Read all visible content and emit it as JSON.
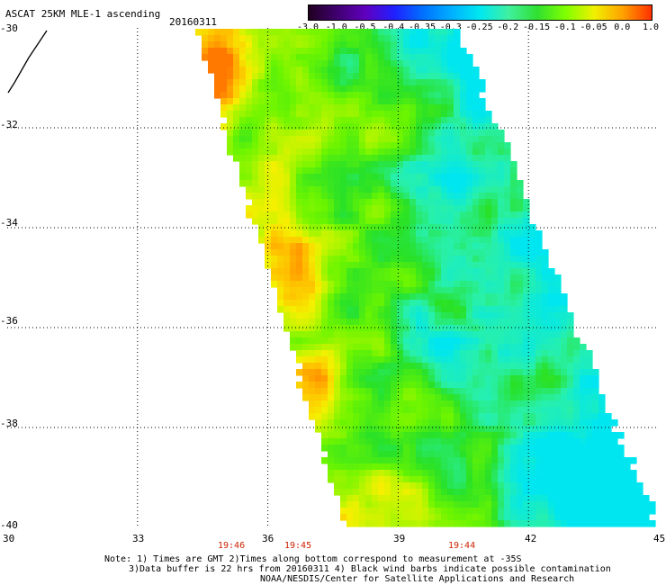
{
  "header": {
    "title": "ASCAT 25KM MLE-1 ascending",
    "date": "20160311"
  },
  "colorbar": {
    "labels": [
      "-3.0",
      "-1.0",
      "-0.5",
      "-0.4",
      "-0.35",
      "-0.3",
      "-0.25",
      "-0.2",
      "-0.15",
      "-0.1",
      "-0.05",
      "0.0",
      "1.0"
    ],
    "colors": [
      "#200020",
      "#400070",
      "#6000c0",
      "#2020ff",
      "#0070ff",
      "#00b0ff",
      "#00e8f0",
      "#40f0a0",
      "#30e030",
      "#80ff00",
      "#f0f000",
      "#ffa000",
      "#ff3000"
    ]
  },
  "axes": {
    "lat_labels": [
      "-30",
      "-32",
      "-34",
      "-36",
      "-38",
      "-40"
    ],
    "lon_labels": [
      "30",
      "33",
      "36",
      "39",
      "42",
      "45"
    ]
  },
  "pass_times": [
    "19:46",
    "19:45",
    "19:44"
  ],
  "notes": {
    "line1": "Note: 1) Times are GMT 2)Times along bottom correspond to measurement at -35S",
    "line2": "3)Data buffer is 22 hrs from 20160311 4) Black wind barbs indicate possible contamination",
    "line3": "NOAA/NESDIS/Center for Satellite Applications and Research"
  },
  "map_data": {
    "lat_range": [
      -40,
      -30
    ],
    "lon_range": [
      30,
      45
    ],
    "swath_orientation": "NW-SE ascending",
    "dominant_values": "-0.25 to -0.05",
    "orange_zones": [
      "west edge near 31-32S",
      "west edge near 34.5-35.5S",
      "near 37-38S 36E"
    ],
    "cyan_zones": [
      "southeast near 38-40S 42-45E",
      "northeast edge near 30-31S"
    ]
  }
}
